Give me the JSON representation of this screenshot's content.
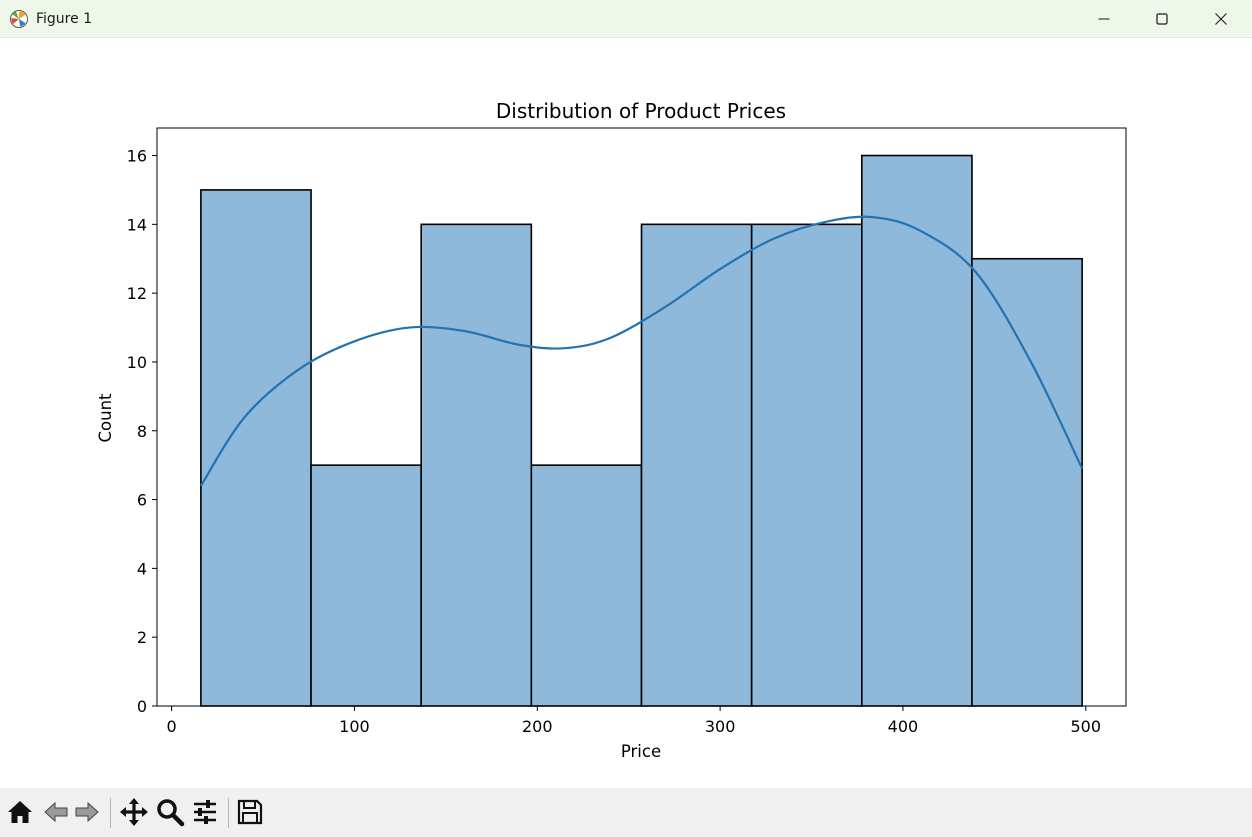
{
  "window": {
    "title": "Figure 1",
    "icons": {
      "app": "matplotlib-logo-icon",
      "minimize": "minimize-icon",
      "maximize": "maximize-icon",
      "close": "close-icon"
    }
  },
  "toolbar": {
    "buttons": [
      {
        "name": "home-icon"
      },
      {
        "name": "back-arrow-icon"
      },
      {
        "name": "forward-arrow-icon"
      },
      {
        "name": "pan-move-icon"
      },
      {
        "name": "zoom-magnifier-icon"
      },
      {
        "name": "configure-subplots-icon"
      },
      {
        "name": "save-disk-icon"
      }
    ]
  },
  "chart_data": {
    "type": "bar",
    "title": "Distribution of Product Prices",
    "xlabel": "Price",
    "ylabel": "Count",
    "xlim": [
      -8,
      522
    ],
    "ylim": [
      0,
      16.8
    ],
    "xticks": [
      0,
      100,
      200,
      300,
      400,
      500
    ],
    "yticks": [
      0,
      2,
      4,
      6,
      8,
      10,
      12,
      14,
      16
    ],
    "bin_edges": [
      16,
      76.25,
      136.5,
      196.75,
      257,
      317.25,
      377.5,
      437.75,
      498
    ],
    "counts": [
      15,
      7,
      14,
      7,
      14,
      14,
      16,
      13
    ],
    "kde_line": {
      "x": [
        16,
        40,
        70,
        100,
        130,
        160,
        190,
        215,
        240,
        270,
        300,
        330,
        360,
        385,
        410,
        440,
        470,
        498
      ],
      "y": [
        6.4,
        8.4,
        9.8,
        10.6,
        11.0,
        10.9,
        10.5,
        10.4,
        10.7,
        11.6,
        12.7,
        13.6,
        14.1,
        14.2,
        13.8,
        12.6,
        10.0,
        6.9
      ]
    },
    "colors": {
      "bar_fill": "#8fb9da",
      "bar_edge": "#000000",
      "kde": "#2372b2"
    },
    "grid": false
  }
}
